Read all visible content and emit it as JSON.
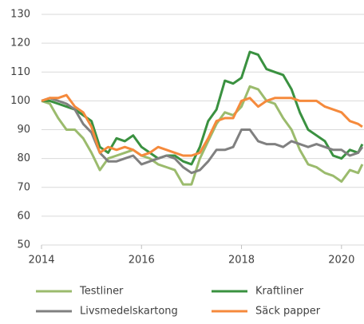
{
  "chart_data": {
    "type": "line",
    "x": [
      2014,
      2014.167,
      2014.333,
      2014.5,
      2014.667,
      2014.833,
      2015,
      2015.167,
      2015.333,
      2015.5,
      2015.667,
      2015.833,
      2016,
      2016.167,
      2016.333,
      2016.5,
      2016.667,
      2016.833,
      2017,
      2017.167,
      2017.333,
      2017.5,
      2017.667,
      2017.833,
      2018,
      2018.167,
      2018.333,
      2018.5,
      2018.667,
      2018.833,
      2019,
      2019.167,
      2019.333,
      2019.5,
      2019.667,
      2019.833,
      2020,
      2020.167,
      2020.333,
      2020.417
    ],
    "series": [
      {
        "name": "Testliner",
        "color": "#9bbb6d",
        "values": [
          100,
          99,
          94,
          90,
          90,
          87,
          82,
          76,
          80,
          81,
          82,
          83,
          81,
          80,
          78,
          77,
          76,
          71,
          71,
          80,
          86,
          92,
          96,
          95,
          98,
          105,
          104,
          100,
          99,
          94,
          90,
          83,
          78,
          77,
          75,
          74,
          72,
          76,
          75,
          78
        ]
      },
      {
        "name": "Kraftliner",
        "color": "#3a9140",
        "values": [
          100,
          100,
          99,
          98,
          97,
          95,
          93,
          84,
          82,
          87,
          86,
          88,
          84,
          82,
          80,
          81,
          81,
          79,
          78,
          84,
          93,
          97,
          107,
          106,
          108,
          117,
          116,
          111,
          110,
          109,
          104,
          96,
          90,
          88,
          86,
          81,
          80,
          83,
          82,
          85
        ]
      },
      {
        "name": "Livsmedelskartong",
        "color": "#808080",
        "values": [
          100,
          101,
          100,
          99,
          97,
          92,
          89,
          82,
          79,
          79,
          80,
          81,
          78,
          79,
          80,
          81,
          80,
          77,
          75,
          76,
          79,
          83,
          83,
          84,
          90,
          90,
          86,
          85,
          85,
          84,
          86,
          85,
          84,
          85,
          84,
          83,
          83,
          81,
          82,
          84
        ]
      },
      {
        "name": "Säck papper",
        "color": "#f58a3c",
        "values": [
          100,
          101,
          101,
          102,
          98,
          96,
          91,
          82,
          84,
          83,
          84,
          83,
          81,
          82,
          84,
          83,
          82,
          81,
          81,
          82,
          87,
          93,
          94,
          94,
          100,
          101,
          98,
          100,
          101,
          101,
          101,
          100,
          100,
          100,
          98,
          97,
          96,
          93,
          92,
          91
        ]
      }
    ],
    "xlim": [
      2014,
      2020.45
    ],
    "xticks": [
      2014,
      2016,
      2018,
      2020
    ],
    "ylim": [
      50,
      130
    ],
    "yticks": [
      50,
      60,
      70,
      80,
      90,
      100,
      110,
      120,
      130
    ],
    "grid": true
  }
}
